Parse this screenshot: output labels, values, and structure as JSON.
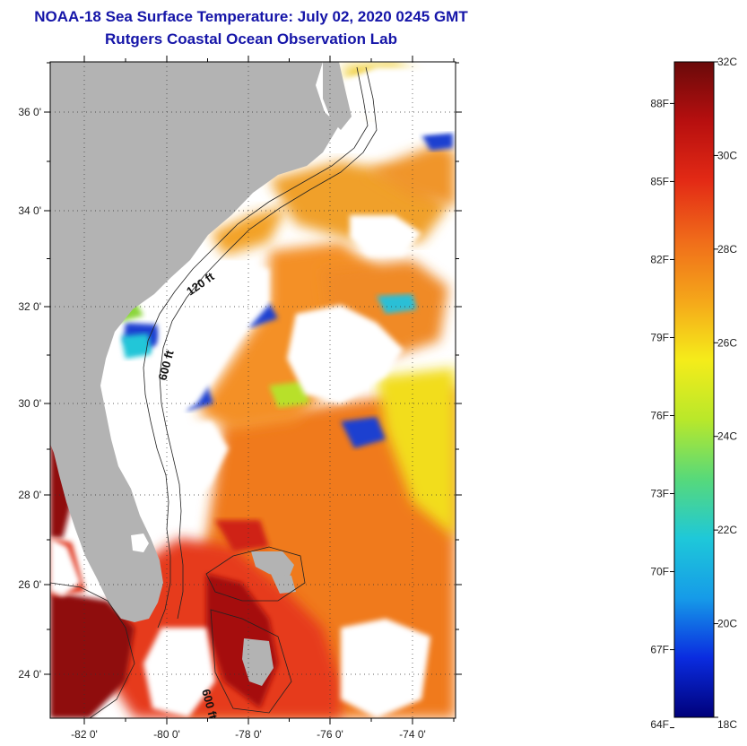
{
  "title": "NOAA-18 Sea Surface Temperature:  July 02, 2020 0245 GMT",
  "subtitle": "Rutgers Coastal Ocean Observation Lab",
  "map": {
    "lat_labels": [
      "24 0'",
      "26 0'",
      "28 0'",
      "30 0'",
      "32 0'",
      "34 0'",
      "36 0'"
    ],
    "lon_labels": [
      "-82 0'",
      "-80 0'",
      "-78 0'",
      "-76 0'",
      "-74 0'"
    ],
    "contour_labels": [
      "120 ft",
      "600 ft",
      "600 ft"
    ],
    "colors": {
      "land": "#b3b3b3",
      "cloud": "#ffffff",
      "warm_dark": "#8b0a0a",
      "warm": "#e8321a",
      "orange": "#f5821f",
      "yellow": "#f2e21c",
      "green": "#7ed43a",
      "cyan": "#21c8d9",
      "blue": "#1a3fcf"
    }
  },
  "colorbar": {
    "celsius_labels": [
      "32C",
      "30C",
      "28C",
      "26C",
      "24C",
      "22C",
      "20C",
      "18C"
    ],
    "fahrenheit_labels": [
      "88F",
      "85F",
      "82F",
      "79F",
      "76F",
      "73F",
      "70F",
      "67F",
      "64F"
    ],
    "range_c": [
      18,
      32
    ],
    "gradient_stops": [
      "#00007a",
      "#0a2ce0",
      "#169be8",
      "#1ec8d9",
      "#57d97a",
      "#b9e82a",
      "#f5ec1a",
      "#f5a61a",
      "#f06c1a",
      "#e32a15",
      "#b70f0f",
      "#6a0a0a"
    ]
  }
}
